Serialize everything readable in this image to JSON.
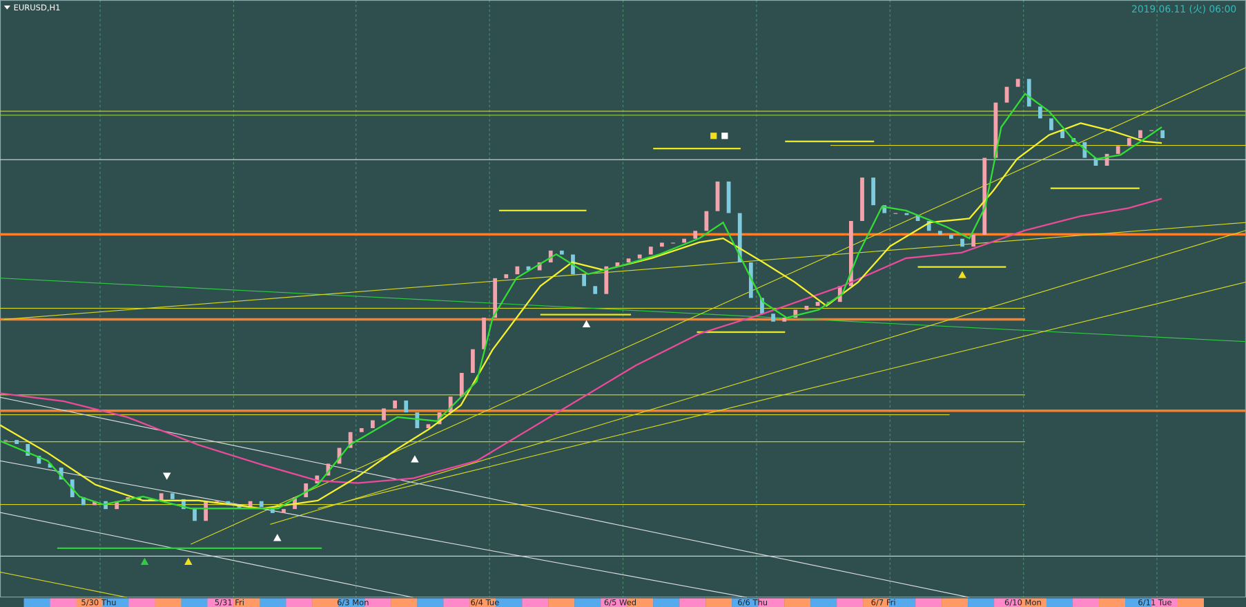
{
  "chart_data": {
    "type": "candlestick",
    "title": "EURUSD,H1",
    "subtitle": "2019.06.11 (火) 06:00",
    "categories": [
      null,
      null,
      null,
      null,
      null,
      null,
      null,
      null,
      null,
      "5/30 Thu",
      null,
      null,
      null,
      null,
      null,
      null,
      null,
      null,
      null,
      null,
      null,
      "5/31 Fri",
      null,
      null,
      null,
      null,
      null,
      null,
      null,
      null,
      null,
      null,
      "6/3 Mon",
      null,
      null,
      null,
      null,
      null,
      null,
      null,
      null,
      null,
      null,
      null,
      "6/4 Tue",
      null,
      null,
      null,
      null,
      null,
      null,
      null,
      null,
      null,
      null,
      null,
      "6/5 Wed",
      null,
      null,
      null,
      null,
      null,
      null,
      null,
      null,
      null,
      null,
      null,
      "6/6 Thu",
      null,
      null,
      null,
      null,
      null,
      null,
      null,
      null,
      null,
      null,
      null,
      "6/7 Fri",
      null,
      null,
      null,
      null,
      null,
      null,
      null,
      null,
      null,
      null,
      null,
      "6/10 Mon",
      null,
      null,
      null,
      null,
      null,
      null,
      null,
      null,
      null,
      null,
      null,
      "6/11 Tue"
    ],
    "values": [
      1.1161,
      1.1159,
      1.1153,
      1.1149,
      1.1147,
      1.1141,
      1.1132,
      1.1128,
      1.113,
      1.1126,
      1.113,
      1.1132,
      1.1131,
      1.113,
      1.1134,
      1.1131,
      1.1126,
      1.112,
      1.113,
      1.113,
      1.1128,
      1.1126,
      1.113,
      1.1127,
      1.1124,
      1.1126,
      1.1132,
      1.1139,
      1.1143,
      1.1149,
      1.1157,
      1.1165,
      1.1167,
      1.1171,
      1.1177,
      1.1181,
      1.1175,
      1.1167,
      1.1169,
      1.1175,
      1.1183,
      1.1195,
      1.1207,
      1.1223,
      1.1243,
      1.1245,
      1.1249,
      1.1247,
      1.1251,
      1.1257,
      1.1255,
      1.1245,
      1.1239,
      1.1235,
      1.1249,
      1.1251,
      1.1253,
      1.1255,
      1.1259,
      1.1261,
      1.1261,
      1.1263,
      1.1267,
      1.1277,
      1.1292,
      1.1276,
      1.1251,
      1.1233,
      1.1225,
      1.1221,
      1.1223,
      1.1227,
      1.1229,
      1.1231,
      1.1231,
      1.1239,
      1.1272,
      1.1294,
      1.128,
      1.1276,
      1.1276,
      1.1275,
      1.1272,
      1.1267,
      1.1265,
      1.1263,
      1.1259,
      1.1265,
      1.1304,
      1.1332,
      1.134,
      1.1344,
      1.133,
      1.1324,
      1.1318,
      1.1314,
      1.1312,
      1.1304,
      1.13,
      1.1306,
      1.131,
      1.1314,
      1.1318,
      1.1318,
      1.1314
    ],
    "up_color": "#f4a3ac",
    "down_color": "#7ecbe0",
    "ylim": [
      1.1082,
      1.1384
    ]
  }
}
